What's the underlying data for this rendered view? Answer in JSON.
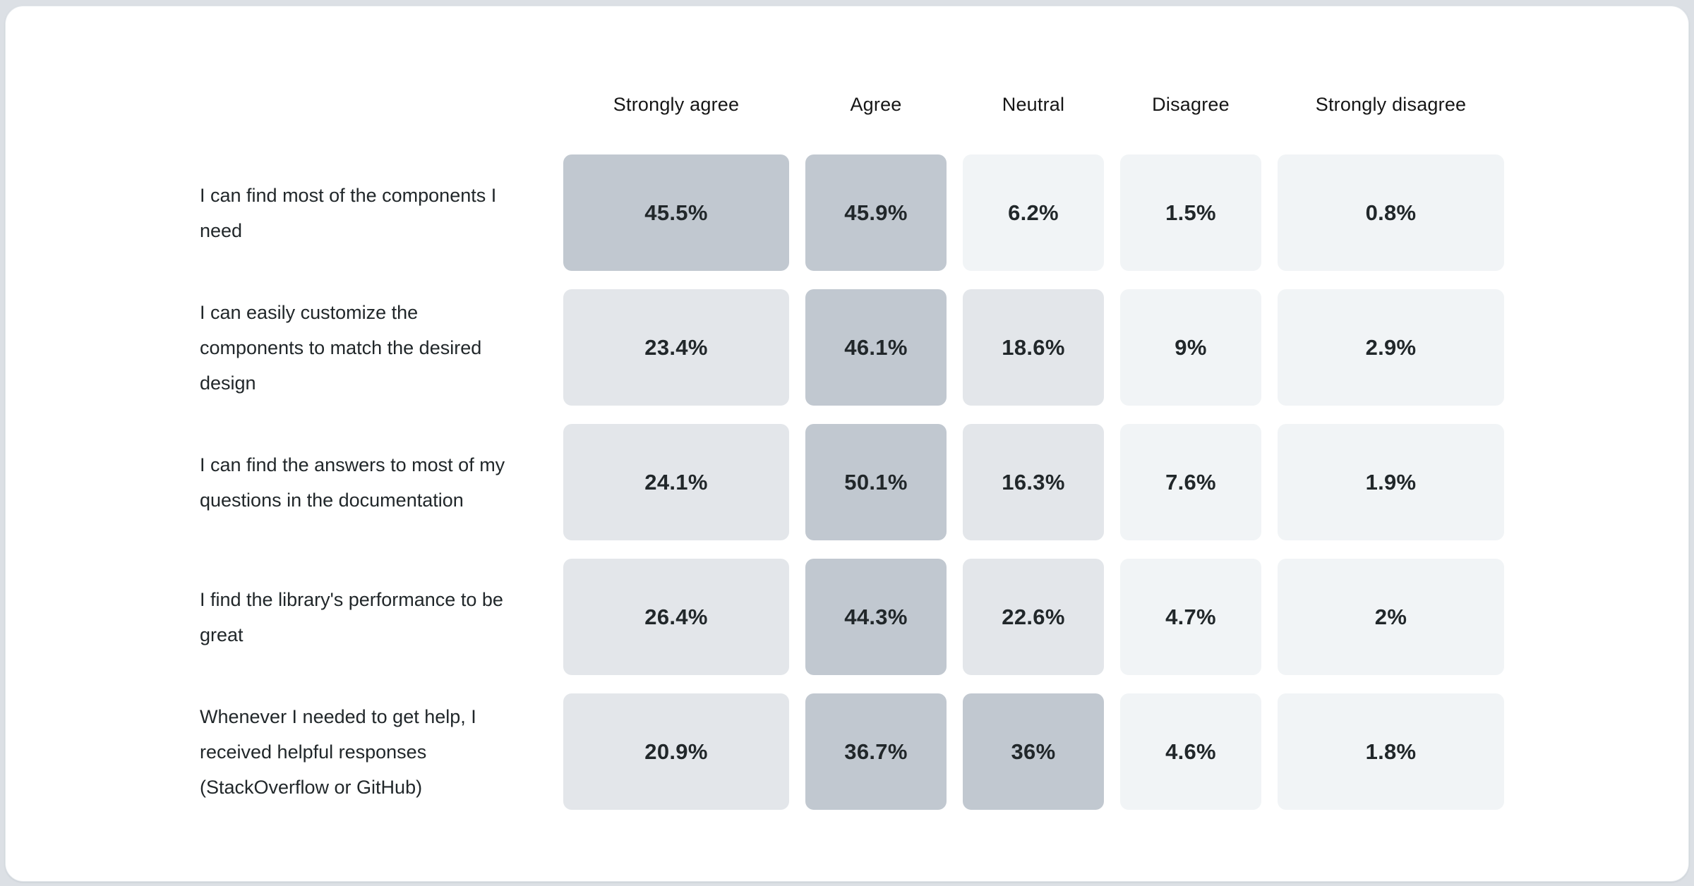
{
  "colors": {
    "page_strip": "#dce0e5",
    "card_background": "#ffffff",
    "card_border": "#e4e8ec",
    "tier_high": "#c1c8d0",
    "tier_mid": "#e3e6ea",
    "tier_low": "#f1f4f6",
    "header_text": "#161616",
    "body_text": "#21272a"
  },
  "matrix": {
    "columns": [
      "Strongly agree",
      "Agree",
      "Neutral",
      "Disagree",
      "Strongly disagree"
    ],
    "rows": [
      {
        "label": "I can find most of the components I need",
        "cells": [
          {
            "value": "45.5%",
            "color": "#c1c8d0"
          },
          {
            "value": "45.9%",
            "color": "#c1c8d0"
          },
          {
            "value": "6.2%",
            "color": "#f1f4f6"
          },
          {
            "value": "1.5%",
            "color": "#f1f4f6"
          },
          {
            "value": "0.8%",
            "color": "#f1f4f6"
          }
        ]
      },
      {
        "label": "I can easily customize the components to match the desired design",
        "cells": [
          {
            "value": "23.4%",
            "color": "#e3e6ea"
          },
          {
            "value": "46.1%",
            "color": "#c1c8d0"
          },
          {
            "value": "18.6%",
            "color": "#e3e6ea"
          },
          {
            "value": "9%",
            "color": "#f1f4f6"
          },
          {
            "value": "2.9%",
            "color": "#f1f4f6"
          }
        ]
      },
      {
        "label": "I can find the answers to most of my questions in the documentation",
        "cells": [
          {
            "value": "24.1%",
            "color": "#e3e6ea"
          },
          {
            "value": "50.1%",
            "color": "#c1c8d0"
          },
          {
            "value": "16.3%",
            "color": "#e3e6ea"
          },
          {
            "value": "7.6%",
            "color": "#f1f4f6"
          },
          {
            "value": "1.9%",
            "color": "#f1f4f6"
          }
        ]
      },
      {
        "label": "I find the library's performance to be great",
        "cells": [
          {
            "value": "26.4%",
            "color": "#e3e6ea"
          },
          {
            "value": "44.3%",
            "color": "#c1c8d0"
          },
          {
            "value": "22.6%",
            "color": "#e3e6ea"
          },
          {
            "value": "4.7%",
            "color": "#f1f4f6"
          },
          {
            "value": "2%",
            "color": "#f1f4f6"
          }
        ]
      },
      {
        "label": "Whenever I needed to get help, I received helpful responses (StackOverflow or GitHub)",
        "cells": [
          {
            "value": "20.9%",
            "color": "#e3e6ea"
          },
          {
            "value": "36.7%",
            "color": "#c1c8d0"
          },
          {
            "value": "36%",
            "color": "#c1c8d0"
          },
          {
            "value": "4.6%",
            "color": "#f1f4f6"
          },
          {
            "value": "1.8%",
            "color": "#f1f4f6"
          }
        ]
      }
    ]
  },
  "chart_data": {
    "type": "heatmap",
    "title": "",
    "columns": [
      "Strongly agree",
      "Agree",
      "Neutral",
      "Disagree",
      "Strongly disagree"
    ],
    "rows": [
      "I can find most of the components I need",
      "I can easily customize the components to match the desired design",
      "I can find the answers to most of my questions in the documentation",
      "I find the library's performance to be great",
      "Whenever I needed to get help, I received helpful responses (StackOverflow or GitHub)"
    ],
    "values_percent": [
      [
        45.5,
        45.9,
        6.2,
        1.5,
        0.8
      ],
      [
        23.4,
        46.1,
        18.6,
        9,
        2.9
      ],
      [
        24.1,
        50.1,
        16.3,
        7.6,
        1.9
      ],
      [
        26.4,
        44.3,
        22.6,
        4.7,
        2
      ],
      [
        20.9,
        36.7,
        36,
        4.6,
        1.8
      ]
    ],
    "cell_labels": [
      [
        "45.5%",
        "45.9%",
        "6.2%",
        "1.5%",
        "0.8%"
      ],
      [
        "23.4%",
        "46.1%",
        "18.6%",
        "9%",
        "2.9%"
      ],
      [
        "24.1%",
        "50.1%",
        "16.3%",
        "7.6%",
        "1.9%"
      ],
      [
        "26.4%",
        "44.3%",
        "22.6%",
        "4.7%",
        "2%"
      ],
      [
        "20.9%",
        "36.7%",
        "36%",
        "4.6%",
        "1.8%"
      ]
    ],
    "legend_position": "none",
    "grid": false,
    "color_scale": {
      "low": "#f1f4f6",
      "mid": "#e3e6ea",
      "high": "#c1c8d0"
    }
  }
}
